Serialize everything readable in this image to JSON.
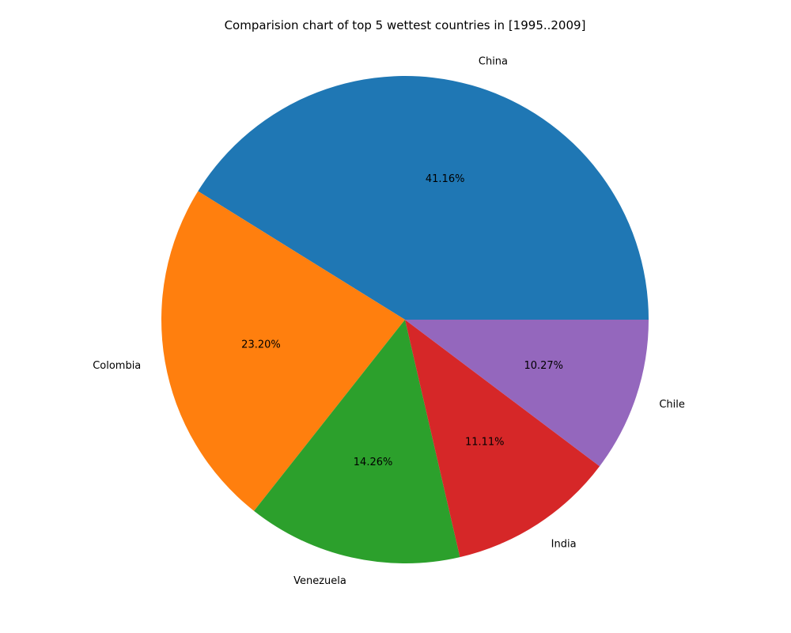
{
  "chart_data": {
    "type": "pie",
    "title": "Comparision chart of top 5 wettest countries in [1995..2009]",
    "slices": [
      {
        "label": "China",
        "percent": 41.16,
        "percent_text": "41.16%",
        "color": "#1f77b4"
      },
      {
        "label": "Colombia",
        "percent": 23.2,
        "percent_text": "23.20%",
        "color": "#ff7f0e"
      },
      {
        "label": "Venezuela",
        "percent": 14.26,
        "percent_text": "14.26%",
        "color": "#2ca02c"
      },
      {
        "label": "India",
        "percent": 11.11,
        "percent_text": "11.11%",
        "color": "#d62728"
      },
      {
        "label": "Chile",
        "percent": 10.27,
        "percent_text": "10.27%",
        "color": "#9467bd"
      }
    ],
    "start_angle": "0 degrees (east), counter-clockwise",
    "legend": "none"
  }
}
